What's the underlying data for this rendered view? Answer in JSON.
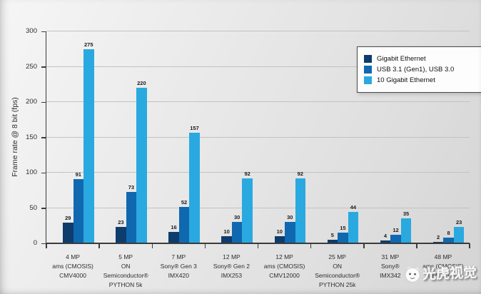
{
  "chart_data": {
    "type": "bar",
    "ylabel": "Frame rate @ 8 bit (fps)",
    "ylim": [
      0,
      300
    ],
    "yticks": [
      0,
      50,
      100,
      150,
      200,
      250,
      300
    ],
    "grid": true,
    "legend_position": "top-right",
    "categories": [
      [
        "4 MP",
        "ams (CMOSIS)",
        "CMV4000"
      ],
      [
        "5 MP",
        "ON Semiconductor®",
        "PYTHON 5k"
      ],
      [
        "7 MP",
        "Sony® Gen 3",
        "IMX420"
      ],
      [
        "12 MP",
        "Sony® Gen 2",
        "IMX253"
      ],
      [
        "12 MP",
        "ams (CMOSIS)",
        "CMV12000"
      ],
      [
        "25 MP",
        "ON Semiconductor®",
        "PYTHON 25k"
      ],
      [
        "31 MP",
        "Sony®",
        "IMX342"
      ],
      [
        "48 MP",
        "ams (CMOSIS)",
        "CMV50000"
      ]
    ],
    "series": [
      {
        "name": "Gigabit Ethernet",
        "color": "#0d3c6d",
        "values": [
          29,
          23,
          16,
          10,
          10,
          5,
          4,
          2
        ]
      },
      {
        "name": "USB 3.1 (Gen1), USB 3.0",
        "color": "#0f68b0",
        "values": [
          91,
          73,
          52,
          30,
          30,
          15,
          12,
          8
        ]
      },
      {
        "name": "10 Gigabit Ethernet",
        "color": "#29a9e0",
        "values": [
          275,
          220,
          157,
          92,
          92,
          44,
          35,
          23
        ]
      }
    ]
  },
  "watermark": {
    "text": "光虎视觉"
  }
}
